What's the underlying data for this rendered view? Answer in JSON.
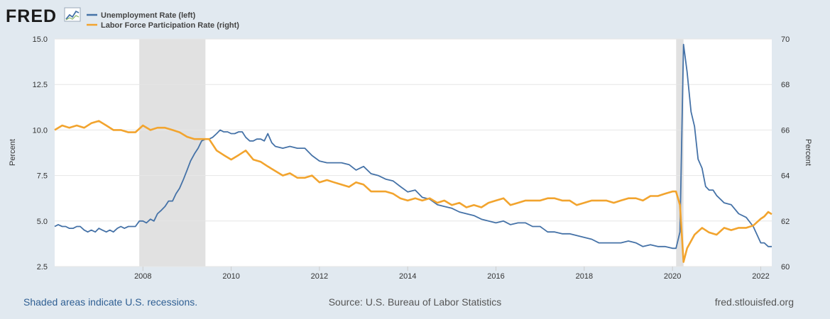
{
  "logo": {
    "text": "FRED"
  },
  "legend": [
    {
      "label": "Unemployment Rate (left)",
      "color": "#4572a7"
    },
    {
      "label": "Labor Force Participation Rate (right)",
      "color": "#f2a42e"
    }
  ],
  "footer": {
    "recessions_note": "Shaded areas indicate U.S. recessions.",
    "source": "Source: U.S. Bureau of Labor Statistics",
    "site": "fred.stlouisfed.org"
  },
  "chart_data": {
    "type": "line",
    "title": "",
    "xlabel": "",
    "x_range": [
      2006.0,
      2022.25
    ],
    "x_ticks": [
      "2008",
      "2010",
      "2012",
      "2014",
      "2016",
      "2018",
      "2020",
      "2022"
    ],
    "y_left": {
      "label": "Percent",
      "range": [
        2.5,
        15.0
      ],
      "ticks": [
        "15.0",
        "12.5",
        "10.0",
        "7.5",
        "5.0",
        "2.5"
      ]
    },
    "y_right": {
      "label": "Percent",
      "range": [
        60,
        70
      ],
      "ticks": [
        "70",
        "68",
        "66",
        "64",
        "62",
        "60"
      ]
    },
    "grid": true,
    "legend_position": "top-left",
    "recessions": [
      {
        "start": 2007.917,
        "end": 2009.417
      },
      {
        "start": 2020.083,
        "end": 2020.25
      }
    ],
    "series": [
      {
        "name": "Unemployment Rate (left)",
        "axis": "left",
        "color": "#4572a7",
        "x": [
          2006.0,
          2006.08,
          2006.17,
          2006.25,
          2006.33,
          2006.42,
          2006.5,
          2006.58,
          2006.67,
          2006.75,
          2006.83,
          2006.92,
          2007.0,
          2007.08,
          2007.17,
          2007.25,
          2007.33,
          2007.42,
          2007.5,
          2007.58,
          2007.67,
          2007.75,
          2007.83,
          2007.92,
          2008.0,
          2008.08,
          2008.17,
          2008.25,
          2008.33,
          2008.42,
          2008.5,
          2008.58,
          2008.67,
          2008.75,
          2008.83,
          2008.92,
          2009.0,
          2009.08,
          2009.17,
          2009.25,
          2009.33,
          2009.42,
          2009.5,
          2009.58,
          2009.67,
          2009.75,
          2009.83,
          2009.92,
          2010.0,
          2010.08,
          2010.17,
          2010.25,
          2010.33,
          2010.42,
          2010.5,
          2010.58,
          2010.67,
          2010.75,
          2010.83,
          2010.92,
          2011.0,
          2011.17,
          2011.33,
          2011.5,
          2011.67,
          2011.83,
          2012.0,
          2012.17,
          2012.33,
          2012.5,
          2012.67,
          2012.83,
          2013.0,
          2013.17,
          2013.33,
          2013.5,
          2013.67,
          2013.83,
          2014.0,
          2014.17,
          2014.33,
          2014.5,
          2014.67,
          2014.83,
          2015.0,
          2015.17,
          2015.33,
          2015.5,
          2015.67,
          2015.83,
          2016.0,
          2016.17,
          2016.33,
          2016.5,
          2016.67,
          2016.83,
          2017.0,
          2017.17,
          2017.33,
          2017.5,
          2017.67,
          2017.83,
          2018.0,
          2018.17,
          2018.33,
          2018.5,
          2018.67,
          2018.83,
          2019.0,
          2019.17,
          2019.33,
          2019.5,
          2019.67,
          2019.83,
          2020.0,
          2020.08,
          2020.17,
          2020.25,
          2020.33,
          2020.42,
          2020.5,
          2020.58,
          2020.67,
          2020.75,
          2020.83,
          2020.92,
          2021.0,
          2021.17,
          2021.33,
          2021.5,
          2021.67,
          2021.83,
          2022.0,
          2022.08,
          2022.17,
          2022.25
        ],
        "y": [
          4.7,
          4.8,
          4.7,
          4.7,
          4.6,
          4.6,
          4.7,
          4.7,
          4.5,
          4.4,
          4.5,
          4.4,
          4.6,
          4.5,
          4.4,
          4.5,
          4.4,
          4.6,
          4.7,
          4.6,
          4.7,
          4.7,
          4.7,
          5.0,
          5.0,
          4.9,
          5.1,
          5.0,
          5.4,
          5.6,
          5.8,
          6.1,
          6.1,
          6.5,
          6.8,
          7.3,
          7.8,
          8.3,
          8.7,
          9.0,
          9.4,
          9.5,
          9.5,
          9.6,
          9.8,
          10.0,
          9.9,
          9.9,
          9.8,
          9.8,
          9.9,
          9.9,
          9.6,
          9.4,
          9.4,
          9.5,
          9.5,
          9.4,
          9.8,
          9.3,
          9.1,
          9.0,
          9.1,
          9.0,
          9.0,
          8.6,
          8.3,
          8.2,
          8.2,
          8.2,
          8.1,
          7.8,
          8.0,
          7.6,
          7.5,
          7.3,
          7.2,
          6.9,
          6.6,
          6.7,
          6.3,
          6.2,
          5.9,
          5.8,
          5.7,
          5.5,
          5.4,
          5.3,
          5.1,
          5.0,
          4.9,
          5.0,
          4.8,
          4.9,
          4.9,
          4.7,
          4.7,
          4.4,
          4.4,
          4.3,
          4.3,
          4.2,
          4.1,
          4.0,
          3.8,
          3.8,
          3.8,
          3.8,
          3.9,
          3.8,
          3.6,
          3.7,
          3.6,
          3.6,
          3.5,
          3.5,
          4.4,
          14.7,
          13.2,
          11.0,
          10.2,
          8.4,
          7.9,
          6.9,
          6.7,
          6.7,
          6.4,
          6.0,
          5.9,
          5.4,
          5.2,
          4.7,
          3.8,
          3.8,
          3.6,
          3.6
        ]
      },
      {
        "name": "Labor Force Participation Rate (right)",
        "axis": "right",
        "color": "#f2a42e",
        "x": [
          2006.0,
          2006.17,
          2006.33,
          2006.5,
          2006.67,
          2006.83,
          2007.0,
          2007.17,
          2007.33,
          2007.5,
          2007.67,
          2007.83,
          2008.0,
          2008.17,
          2008.33,
          2008.5,
          2008.67,
          2008.83,
          2009.0,
          2009.17,
          2009.33,
          2009.5,
          2009.67,
          2009.83,
          2010.0,
          2010.17,
          2010.33,
          2010.5,
          2010.67,
          2010.83,
          2011.0,
          2011.17,
          2011.33,
          2011.5,
          2011.67,
          2011.83,
          2012.0,
          2012.17,
          2012.33,
          2012.5,
          2012.67,
          2012.83,
          2013.0,
          2013.17,
          2013.33,
          2013.5,
          2013.67,
          2013.83,
          2014.0,
          2014.17,
          2014.33,
          2014.5,
          2014.67,
          2014.83,
          2015.0,
          2015.17,
          2015.33,
          2015.5,
          2015.67,
          2015.83,
          2016.0,
          2016.17,
          2016.33,
          2016.5,
          2016.67,
          2016.83,
          2017.0,
          2017.17,
          2017.33,
          2017.5,
          2017.67,
          2017.83,
          2018.0,
          2018.17,
          2018.33,
          2018.5,
          2018.67,
          2018.83,
          2019.0,
          2019.17,
          2019.33,
          2019.5,
          2019.67,
          2019.83,
          2020.0,
          2020.08,
          2020.17,
          2020.25,
          2020.33,
          2020.5,
          2020.67,
          2020.83,
          2021.0,
          2021.17,
          2021.33,
          2021.5,
          2021.67,
          2021.83,
          2022.0,
          2022.08,
          2022.17,
          2022.25
        ],
        "y": [
          66.0,
          66.2,
          66.1,
          66.2,
          66.1,
          66.3,
          66.4,
          66.2,
          66.0,
          66.0,
          65.9,
          65.9,
          66.2,
          66.0,
          66.1,
          66.1,
          66.0,
          65.9,
          65.7,
          65.6,
          65.6,
          65.6,
          65.1,
          64.9,
          64.7,
          64.9,
          65.1,
          64.7,
          64.6,
          64.4,
          64.2,
          64.0,
          64.1,
          63.9,
          63.9,
          64.0,
          63.7,
          63.8,
          63.7,
          63.6,
          63.5,
          63.7,
          63.6,
          63.3,
          63.3,
          63.3,
          63.2,
          63.0,
          62.9,
          63.0,
          62.9,
          63.0,
          62.8,
          62.9,
          62.7,
          62.8,
          62.6,
          62.7,
          62.6,
          62.8,
          62.9,
          63.0,
          62.7,
          62.8,
          62.9,
          62.9,
          62.9,
          63.0,
          63.0,
          62.9,
          62.9,
          62.7,
          62.8,
          62.9,
          62.9,
          62.9,
          62.8,
          62.9,
          63.0,
          63.0,
          62.9,
          63.1,
          63.1,
          63.2,
          63.3,
          63.3,
          62.7,
          60.2,
          60.8,
          61.4,
          61.7,
          61.5,
          61.4,
          61.7,
          61.6,
          61.7,
          61.7,
          61.8,
          62.1,
          62.2,
          62.4,
          62.3
        ]
      }
    ]
  }
}
